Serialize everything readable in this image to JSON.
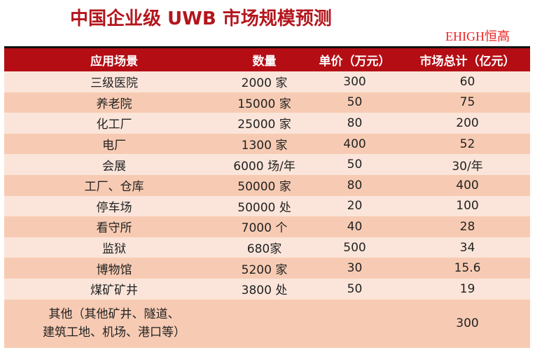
{
  "title": "中国企业级 UWB 市场规模预测",
  "watermark": "EHIGH恒高",
  "colors": {
    "title": "#b3161d",
    "header_bg": "#b50d14",
    "row_light": "#fbe5da",
    "row_dark": "#f7cbb3",
    "watermark": "#f02020"
  },
  "chart_data": {
    "type": "table",
    "title": "中国企业级 UWB 市场规模预测",
    "columns": [
      "应用场景",
      "数量",
      "单价（万元）",
      "市场总计（亿元）"
    ],
    "rows": [
      [
        "三级医院",
        "2000 家",
        "300",
        "60"
      ],
      [
        "养老院",
        "15000 家",
        "50",
        "75"
      ],
      [
        "化工厂",
        "25000 家",
        "80",
        "200"
      ],
      [
        "电厂",
        "1300 家",
        "400",
        "52"
      ],
      [
        "会展",
        "6000 场/年",
        "50",
        "30/年"
      ],
      [
        "工厂、仓库",
        "50000 家",
        "80",
        "400"
      ],
      [
        "停车场",
        "50000 处",
        "20",
        "100"
      ],
      [
        "看守所",
        "7000 个",
        "40",
        "28"
      ],
      [
        "监狱",
        "680家",
        "500",
        "34"
      ],
      [
        "博物馆",
        "5200 家",
        "30",
        "15.6"
      ],
      [
        "煤矿矿井",
        "3800 处",
        "50",
        "19"
      ]
    ],
    "last_row": {
      "scene_line1": "其他（其他矿井、隧道、",
      "scene_line2": "建筑工地、机场、港口等）",
      "quantity": "",
      "price": "",
      "total": "300"
    }
  }
}
